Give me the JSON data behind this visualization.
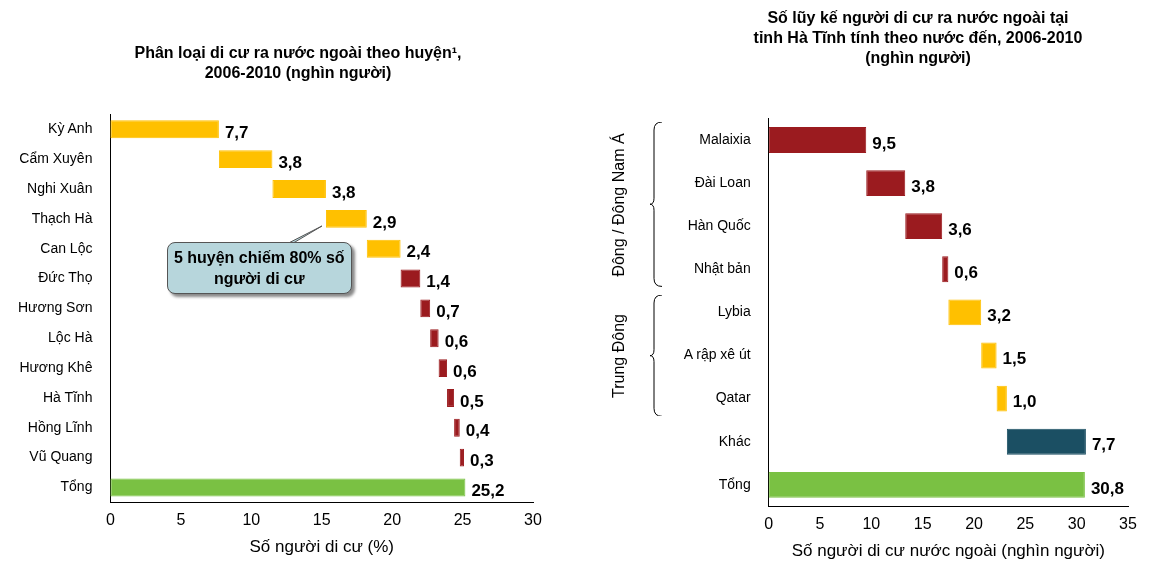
{
  "chart_data": [
    {
      "type": "bar",
      "orientation": "horizontal",
      "title": "Phân loại di cư ra nước ngoài theo huyện¹, 2006-2010 (nghìn người)",
      "xlabel": "Số người di cư (%)",
      "categories": [
        "Kỳ Anh",
        "Cẩm Xuyên",
        "Nghi Xuân",
        "Thạch Hà",
        "Can Lộc",
        "Đức Thọ",
        "Hương Sơn",
        "Lộc Hà",
        "Hương Khê",
        "Hà Tĩnh",
        "Hồng Lĩnh",
        "Vũ Quang",
        "Tổng"
      ],
      "values": [
        7.7,
        3.8,
        3.8,
        2.9,
        2.4,
        1.4,
        0.7,
        0.6,
        0.6,
        0.5,
        0.4,
        0.3,
        25.2
      ],
      "base": [
        0,
        7.7,
        11.5,
        15.3,
        18.2,
        20.6,
        22.0,
        22.7,
        23.3,
        23.9,
        24.4,
        24.8,
        null
      ],
      "value_labels": [
        "7,7",
        "3,8",
        "3,8",
        "2,9",
        "2,4",
        "1,4",
        "0,7",
        "0,6",
        "0,6",
        "0,5",
        "0,4",
        "0,3",
        "25,2"
      ],
      "colors": [
        "#ffc000",
        "#ffc000",
        "#ffc000",
        "#ffc000",
        "#ffc000",
        "#9b1b1f",
        "#9b1b1f",
        "#9b1b1f",
        "#9b1b1f",
        "#9b1b1f",
        "#9b1b1f",
        "#9b1b1f",
        "#7ac143"
      ],
      "xlim": [
        0,
        30
      ],
      "xticks": [
        0,
        5,
        10,
        15,
        20,
        25,
        30
      ],
      "grid": false,
      "legend": false,
      "annotations": [
        "5 huyện chiếm 80% số người di cư"
      ]
    },
    {
      "type": "bar",
      "orientation": "horizontal",
      "title": "Số lũy kế người di cư ra nước ngoài tại tỉnh Hà Tĩnh tính theo nước đến, 2006-2010 (nghìn người)",
      "xlabel": "Số người di cư nước ngoài (nghìn người)",
      "categories": [
        "Malaixia",
        "Đài Loan",
        "Hàn Quốc",
        "Nhật bản",
        "Lybia",
        "A rập xê út",
        "Qatar",
        "Khác",
        "Tổng"
      ],
      "values": [
        9.5,
        3.8,
        3.6,
        0.6,
        3.2,
        1.5,
        1.0,
        7.7,
        30.8
      ],
      "base": [
        0,
        9.5,
        13.3,
        16.9,
        17.5,
        20.7,
        22.2,
        23.2,
        null
      ],
      "value_labels": [
        "9,5",
        "3,8",
        "3,6",
        "0,6",
        "3,2",
        "1,5",
        "1,0",
        "7,7",
        "30,8"
      ],
      "colors": [
        "#9b1b1f",
        "#9b1b1f",
        "#9b1b1f",
        "#9b1b1f",
        "#ffc000",
        "#ffc000",
        "#ffc000",
        "#1b4f63",
        "#7ac143"
      ],
      "xlim": [
        0,
        35
      ],
      "xticks": [
        0,
        5,
        10,
        15,
        20,
        25,
        30,
        35
      ],
      "grid": false,
      "legend": false,
      "annotations": [
        "Đông / Đông Nam Á",
        "Trung Đông"
      ]
    }
  ]
}
